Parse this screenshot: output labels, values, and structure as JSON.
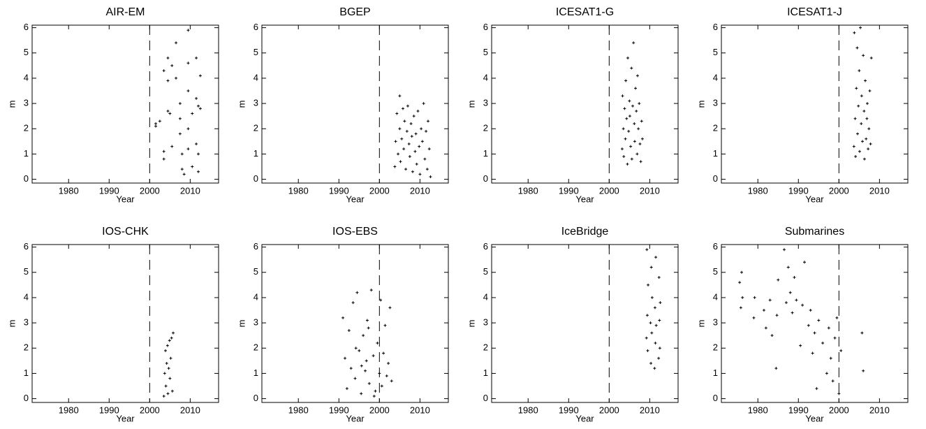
{
  "chart_data": [
    {
      "type": "scatter",
      "title": "AIR-EM",
      "xlabel": "Year",
      "ylabel": "m",
      "color": "#000000",
      "xlim": [
        1971,
        2017
      ],
      "ylim": [
        -0.15,
        6.1
      ],
      "xticks": [
        1980,
        1990,
        2000,
        2010
      ],
      "yticks": [
        0,
        1,
        2,
        3,
        4,
        5,
        6
      ],
      "vline": 2000,
      "x": [
        2001.5,
        2001.5,
        2002.5,
        2003.5,
        2003.5,
        2003.5,
        2004.5,
        2004.5,
        2004.5,
        2005,
        2005.5,
        2005.5,
        2006.5,
        2006.5,
        2007.5,
        2007.5,
        2007.5,
        2008,
        2008,
        2008.5,
        2009.5,
        2009.5,
        2009.5,
        2009.5,
        2009.5,
        2010.5,
        2010.5,
        2011.5,
        2011.5,
        2011.5,
        2012,
        2012,
        2012,
        2012.5,
        2012.5
      ],
      "y": [
        2.1,
        2.2,
        2.3,
        0.8,
        1.1,
        4.3,
        3.9,
        2.7,
        4.8,
        2.6,
        4.5,
        1.3,
        5.4,
        4.0,
        2.4,
        1.8,
        3.0,
        0.4,
        1.0,
        0.2,
        5.9,
        4.6,
        3.5,
        2.0,
        1.2,
        2.6,
        0.5,
        4.8,
        3.2,
        1.4,
        2.9,
        1.0,
        0.3,
        4.1,
        2.8
      ]
    },
    {
      "type": "scatter",
      "title": "BGEP",
      "xlabel": "Year",
      "ylabel": "m",
      "color": "#000000",
      "xlim": [
        1971,
        2017
      ],
      "ylim": [
        -0.15,
        6.1
      ],
      "xticks": [
        1980,
        1990,
        2000,
        2010
      ],
      "yticks": [
        0,
        1,
        2,
        3,
        4,
        5,
        6
      ],
      "vline": 2000,
      "x": [
        2003.8,
        2004,
        2004.3,
        2004.6,
        2005,
        2005,
        2005.2,
        2005.5,
        2005.8,
        2006,
        2006.2,
        2006.5,
        2006.8,
        2007,
        2007.3,
        2007.5,
        2007.8,
        2008,
        2008.2,
        2008.5,
        2008.8,
        2009,
        2009.2,
        2009.5,
        2009.8,
        2010,
        2010.3,
        2010.6,
        2010.9,
        2011.2,
        2011.5,
        2011.8,
        2012,
        2012.3,
        2012.6
      ],
      "y": [
        0.5,
        1.5,
        2.6,
        1.0,
        3.3,
        2.0,
        0.7,
        1.6,
        2.8,
        1.2,
        2.3,
        0.4,
        1.9,
        2.9,
        1.4,
        0.9,
        2.2,
        1.7,
        0.3,
        2.5,
        1.1,
        1.8,
        0.6,
        2.7,
        1.3,
        0.2,
        2.0,
        1.5,
        3.0,
        0.8,
        1.9,
        0.4,
        2.3,
        1.2,
        0.1
      ]
    },
    {
      "type": "scatter",
      "title": "ICESAT1-G",
      "xlabel": "Year",
      "ylabel": "m",
      "color": "#000000",
      "xlim": [
        1971,
        2017
      ],
      "ylim": [
        -0.15,
        6.1
      ],
      "xticks": [
        1980,
        1990,
        2000,
        2010
      ],
      "yticks": [
        0,
        1,
        2,
        3,
        4,
        5,
        6
      ],
      "vline": 2000,
      "x": [
        2003.2,
        2003.3,
        2003.5,
        2003.6,
        2003.8,
        2004,
        2004.1,
        2004.3,
        2004.5,
        2004.6,
        2004.8,
        2005,
        2005.1,
        2005.3,
        2005.5,
        2005.6,
        2005.8,
        2006,
        2006.2,
        2006.3,
        2006.5,
        2006.7,
        2006.9,
        2007,
        2007.2,
        2007.4,
        2007.6,
        2007.8,
        2008,
        2008.2
      ],
      "y": [
        1.2,
        3.3,
        2.0,
        0.9,
        2.8,
        1.6,
        3.9,
        2.4,
        0.6,
        4.8,
        1.9,
        3.1,
        2.5,
        1.3,
        4.4,
        0.8,
        2.9,
        5.4,
        2.2,
        1.5,
        3.6,
        2.7,
        1.0,
        4.1,
        2.0,
        3.0,
        1.4,
        0.7,
        2.3,
        1.6
      ]
    },
    {
      "type": "scatter",
      "title": "ICESAT1-J",
      "xlabel": "Year",
      "ylabel": "m",
      "color": "#000000",
      "xlim": [
        1971,
        2017
      ],
      "ylim": [
        -0.15,
        6.1
      ],
      "xticks": [
        1980,
        1990,
        2000,
        2010
      ],
      "yticks": [
        0,
        1,
        2,
        3,
        4,
        5,
        6
      ],
      "vline": 2000,
      "x": [
        2003.7,
        2003.8,
        2004,
        2004.1,
        2004.3,
        2004.5,
        2004.6,
        2004.8,
        2005,
        2005.1,
        2005.3,
        2005.5,
        2005.6,
        2005.8,
        2006,
        2006.2,
        2006.3,
        2006.5,
        2006.7,
        2006.9,
        2007,
        2007.2,
        2007.4,
        2007.6,
        2007.8,
        2008
      ],
      "y": [
        1.3,
        5.8,
        2.4,
        0.9,
        3.6,
        5.2,
        1.8,
        2.9,
        4.3,
        1.1,
        6.0,
        2.2,
        3.3,
        1.5,
        4.9,
        2.7,
        0.8,
        3.9,
        1.6,
        2.4,
        3.0,
        1.2,
        2.0,
        3.5,
        1.4,
        4.8
      ]
    },
    {
      "type": "scatter",
      "title": "IOS-CHK",
      "xlabel": "Year",
      "ylabel": "m",
      "color": "#000000",
      "xlim": [
        1971,
        2017
      ],
      "ylim": [
        -0.15,
        6.1
      ],
      "xticks": [
        1980,
        1990,
        2000,
        2010
      ],
      "yticks": [
        0,
        1,
        2,
        3,
        4,
        5,
        6
      ],
      "vline": 2000,
      "x": [
        2003.5,
        2003.7,
        2003.9,
        2004,
        2004.2,
        2004.4,
        2004.5,
        2004.7,
        2004.9,
        2005,
        2005.2,
        2005.4,
        2005.6,
        2005.8
      ],
      "y": [
        0.1,
        1.0,
        1.9,
        0.5,
        1.4,
        2.1,
        0.2,
        1.2,
        2.3,
        0.8,
        1.6,
        2.4,
        0.3,
        2.6
      ]
    },
    {
      "type": "scatter",
      "title": "IOS-EBS",
      "xlabel": "Year",
      "ylabel": "m",
      "color": "#000000",
      "xlim": [
        1971,
        2017
      ],
      "ylim": [
        -0.15,
        6.1
      ],
      "xticks": [
        1980,
        1990,
        2000,
        2010
      ],
      "yticks": [
        0,
        1,
        2,
        3,
        4,
        5,
        6
      ],
      "vline": 2000,
      "x": [
        1991,
        1991.5,
        1992,
        1992.5,
        1993,
        1993.5,
        1994,
        1994.5,
        1995,
        1995.5,
        1996,
        1996.5,
        1997,
        1997.5,
        1998,
        1998.5,
        1999,
        1999.5,
        2000,
        2000.3,
        2000.6,
        2001,
        2001.4,
        2001.8,
        2002.2,
        2002.6,
        2003,
        1994.2,
        1996.8,
        1998.7,
        1997.3,
        1995.6
      ],
      "y": [
        3.2,
        1.6,
        0.4,
        2.7,
        1.2,
        3.8,
        0.8,
        4.2,
        1.9,
        0.2,
        2.5,
        1.1,
        3.1,
        0.6,
        4.3,
        1.7,
        0.3,
        2.2,
        1.0,
        3.9,
        0.5,
        1.8,
        2.9,
        0.9,
        1.4,
        3.6,
        0.7,
        2.0,
        1.5,
        0.1,
        2.8,
        1.3
      ]
    },
    {
      "type": "scatter",
      "title": "IceBridge",
      "xlabel": "Year",
      "ylabel": "m",
      "color": "#000000",
      "xlim": [
        1971,
        2017
      ],
      "ylim": [
        -0.15,
        6.1
      ],
      "xticks": [
        1980,
        1990,
        2000,
        2010
      ],
      "yticks": [
        0,
        1,
        2,
        3,
        4,
        5,
        6
      ],
      "vline": 2000,
      "x": [
        2009.2,
        2009.3,
        2009.4,
        2009.5,
        2009.6,
        2010.2,
        2010.3,
        2010.4,
        2010.5,
        2010.6,
        2011.2,
        2011.3,
        2011.4,
        2011.5,
        2011.6,
        2012.2,
        2012.3,
        2012.4,
        2012.5,
        2012.6
      ],
      "y": [
        2.4,
        5.9,
        3.3,
        1.9,
        4.5,
        3.0,
        1.4,
        5.2,
        2.6,
        4.0,
        1.2,
        3.6,
        2.2,
        5.6,
        2.9,
        1.6,
        4.8,
        3.1,
        2.0,
        3.8
      ]
    },
    {
      "type": "scatter",
      "title": "Submarines",
      "xlabel": "Year",
      "ylabel": "m",
      "color": "#000000",
      "xlim": [
        1971,
        2017
      ],
      "ylim": [
        -0.15,
        6.1
      ],
      "xticks": [
        1980,
        1990,
        2000,
        2010
      ],
      "yticks": [
        0,
        1,
        2,
        3,
        4,
        5,
        6
      ],
      "vline": 2000,
      "x": [
        1975.5,
        1975.8,
        1976,
        1976.2,
        1979,
        1979.2,
        1981.5,
        1982,
        1983,
        1983.5,
        1984.5,
        1984.7,
        1985,
        1986.5,
        1987,
        1987.5,
        1988,
        1988.5,
        1989,
        1989.5,
        1990.5,
        1991,
        1991.5,
        1992.5,
        1993,
        1993.5,
        1994,
        1994.5,
        1995,
        1996,
        1997,
        1997.5,
        1998,
        1998.5,
        1999,
        1999.5,
        2000,
        2000.5,
        2005.7,
        2006
      ],
      "y": [
        4.6,
        3.6,
        5.0,
        4.0,
        3.2,
        4.0,
        3.5,
        2.8,
        3.9,
        2.5,
        1.2,
        3.3,
        4.7,
        5.9,
        3.8,
        5.2,
        4.2,
        3.4,
        4.8,
        3.9,
        2.1,
        3.7,
        5.4,
        2.9,
        3.5,
        1.8,
        2.6,
        0.4,
        3.1,
        2.2,
        1.0,
        2.8,
        1.6,
        0.7,
        2.4,
        3.2,
        0.2,
        1.9,
        2.6,
        1.1
      ]
    }
  ]
}
